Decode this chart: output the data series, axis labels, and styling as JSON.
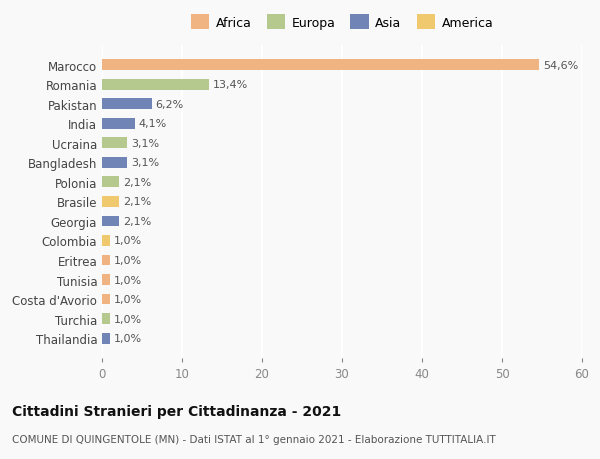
{
  "countries": [
    "Marocco",
    "Romania",
    "Pakistan",
    "India",
    "Ucraina",
    "Bangladesh",
    "Polonia",
    "Brasile",
    "Georgia",
    "Colombia",
    "Eritrea",
    "Tunisia",
    "Costa d'Avorio",
    "Turchia",
    "Thailandia"
  ],
  "values": [
    54.6,
    13.4,
    6.2,
    4.1,
    3.1,
    3.1,
    2.1,
    2.1,
    2.1,
    1.0,
    1.0,
    1.0,
    1.0,
    1.0,
    1.0
  ],
  "labels": [
    "54,6%",
    "13,4%",
    "6,2%",
    "4,1%",
    "3,1%",
    "3,1%",
    "2,1%",
    "2,1%",
    "2,1%",
    "1,0%",
    "1,0%",
    "1,0%",
    "1,0%",
    "1,0%",
    "1,0%"
  ],
  "colors": [
    "#f0b482",
    "#b5c98e",
    "#7085b6",
    "#7085b6",
    "#b5c98e",
    "#7085b6",
    "#b5c98e",
    "#f0c96e",
    "#7085b6",
    "#f0c96e",
    "#f0b482",
    "#f0b482",
    "#f0b482",
    "#b5c98e",
    "#7085b6"
  ],
  "legend_labels": [
    "Africa",
    "Europa",
    "Asia",
    "America"
  ],
  "legend_colors": [
    "#f0b482",
    "#b5c98e",
    "#7085b6",
    "#f0c96e"
  ],
  "xlim": [
    0,
    60
  ],
  "xticks": [
    0,
    10,
    20,
    30,
    40,
    50,
    60
  ],
  "title": "Cittadini Stranieri per Cittadinanza - 2021",
  "subtitle": "COMUNE DI QUINGENTOLE (MN) - Dati ISTAT al 1° gennaio 2021 - Elaborazione TUTTITALIA.IT",
  "background_color": "#f9f9f9",
  "bar_height": 0.55,
  "grid_color": "#ffffff",
  "label_fontsize": 8,
  "title_fontsize": 10,
  "subtitle_fontsize": 7.5,
  "ytick_fontsize": 8.5,
  "xtick_fontsize": 8.5,
  "legend_fontsize": 9
}
